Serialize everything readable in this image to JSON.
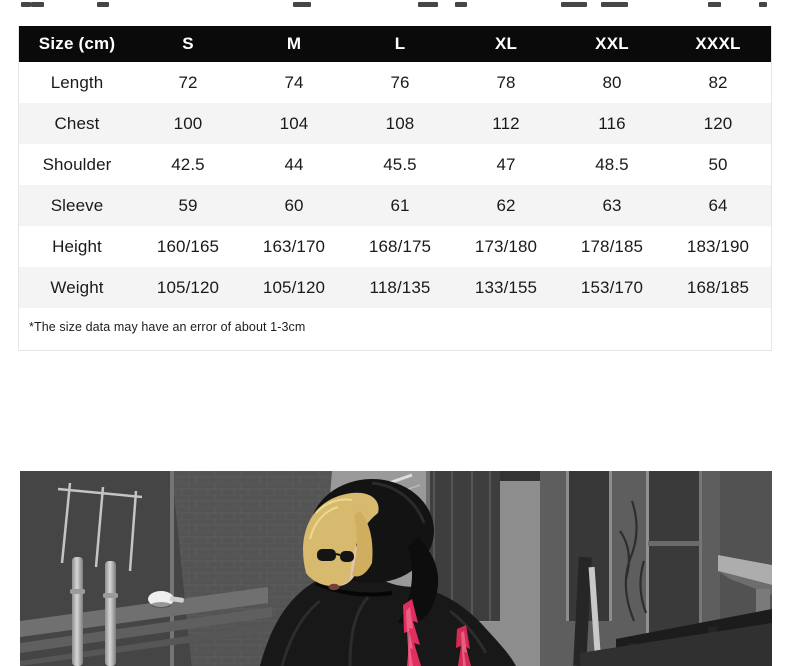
{
  "size_table": {
    "header": {
      "label": "Size (cm)",
      "columns": [
        "S",
        "M",
        "L",
        "XL",
        "XXL",
        "XXXL"
      ],
      "bg_color": "#0a0a0a",
      "text_color": "#ffffff"
    },
    "rows": [
      {
        "label": "Length",
        "values": [
          "72",
          "74",
          "76",
          "78",
          "80",
          "82"
        ]
      },
      {
        "label": "Chest",
        "values": [
          "100",
          "104",
          "108",
          "112",
          "116",
          "120"
        ]
      },
      {
        "label": "Shoulder",
        "values": [
          "42.5",
          "44",
          "45.5",
          "47",
          "48.5",
          "50"
        ]
      },
      {
        "label": "Sleeve",
        "values": [
          "59",
          "60",
          "61",
          "62",
          "63",
          "64"
        ]
      },
      {
        "label": "Height",
        "values": [
          "160/165",
          "163/170",
          "168/175",
          "173/180",
          "178/185",
          "183/190"
        ]
      },
      {
        "label": "Weight",
        "values": [
          "105/120",
          "105/120",
          "118/135",
          "133/155",
          "153/170",
          "168/185"
        ]
      }
    ],
    "stripe_color": "#f4f4f4",
    "note": "*The size data may have an error of about 1-3cm"
  },
  "photo": {
    "alt": "Grayscale street photo of a blonde model in a black hooded denim jacket with pink lightning-bolt accents on the back, brick buildings behind",
    "accent_pink": "#e02e5f",
    "hair_blonde": "#d8ba6e",
    "jacket_black": "#181818"
  }
}
